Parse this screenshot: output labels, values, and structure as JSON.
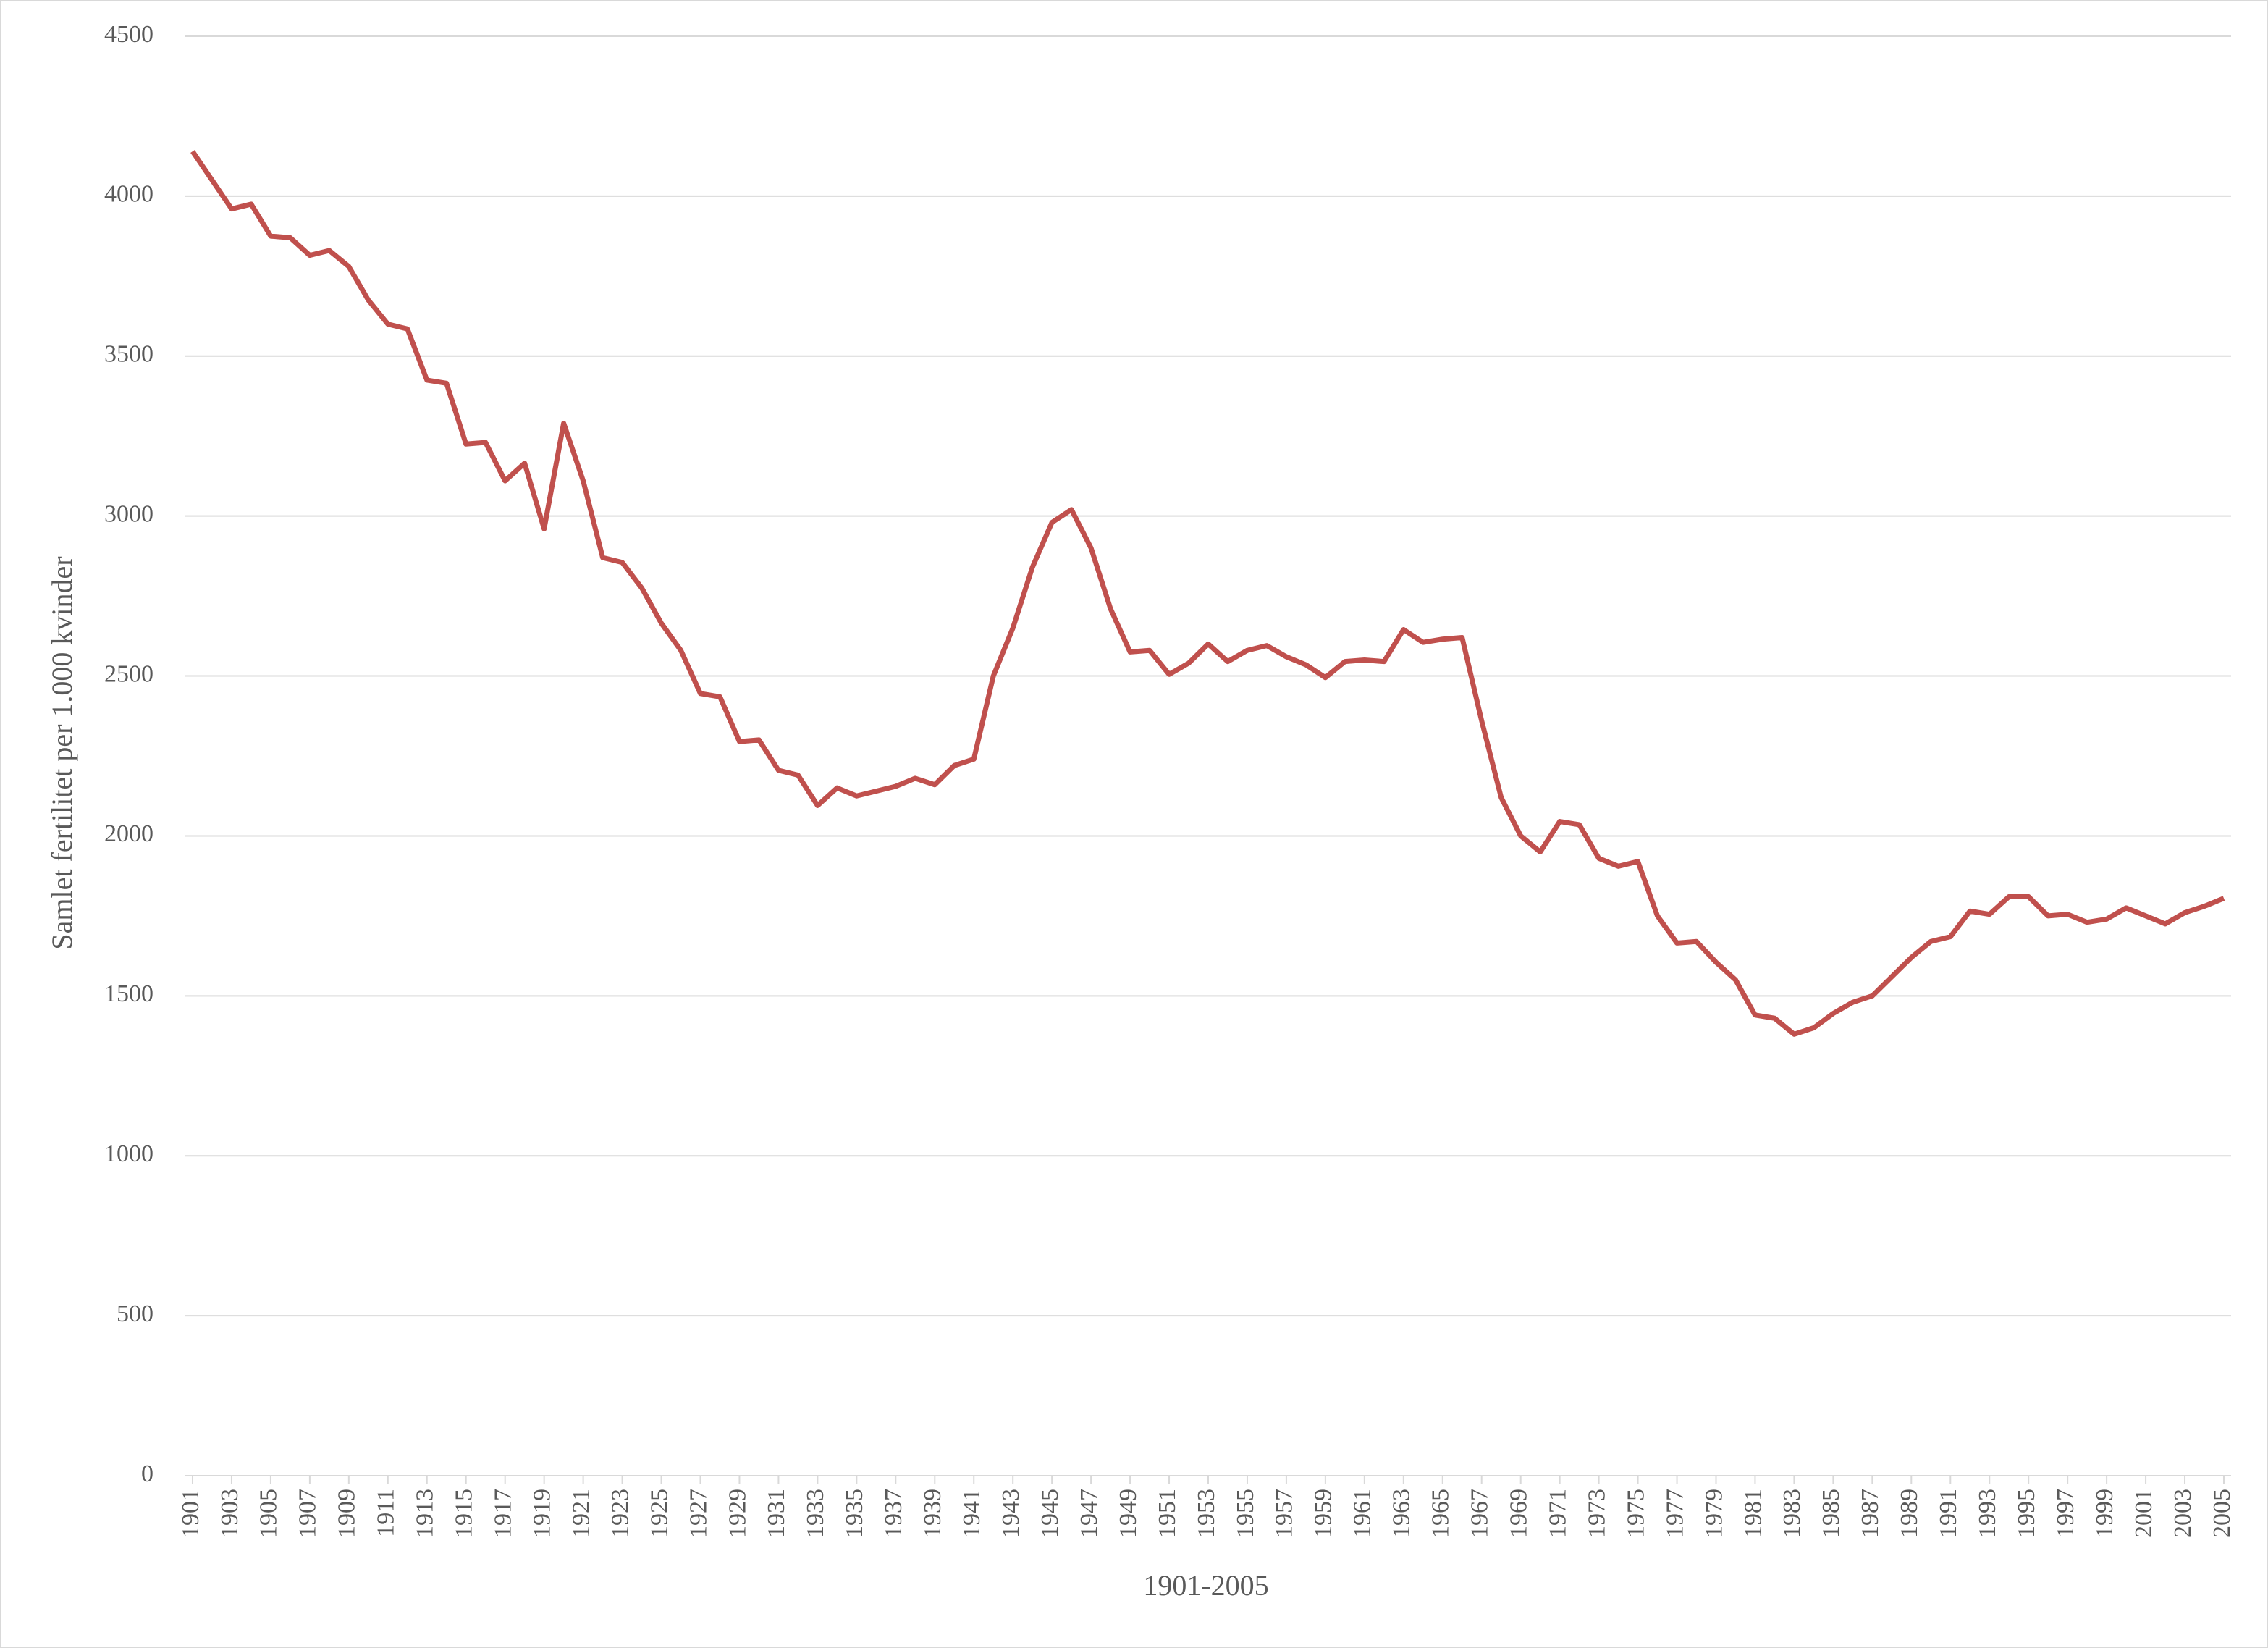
{
  "chart_data": {
    "type": "line",
    "x_label": "1901-2005",
    "y_label": "Samlet fertilitet per 1.000 kvinder",
    "x": [
      1901,
      1902,
      1903,
      1904,
      1905,
      1906,
      1907,
      1908,
      1909,
      1910,
      1911,
      1912,
      1913,
      1914,
      1915,
      1916,
      1917,
      1918,
      1919,
      1920,
      1921,
      1922,
      1923,
      1924,
      1925,
      1926,
      1927,
      1928,
      1929,
      1930,
      1931,
      1932,
      1933,
      1934,
      1935,
      1936,
      1937,
      1938,
      1939,
      1940,
      1941,
      1942,
      1943,
      1944,
      1945,
      1946,
      1947,
      1948,
      1949,
      1950,
      1951,
      1952,
      1953,
      1954,
      1955,
      1956,
      1957,
      1958,
      1959,
      1960,
      1961,
      1962,
      1963,
      1964,
      1965,
      1966,
      1967,
      1968,
      1969,
      1970,
      1971,
      1972,
      1973,
      1974,
      1975,
      1976,
      1977,
      1978,
      1979,
      1980,
      1981,
      1982,
      1983,
      1984,
      1985,
      1986,
      1987,
      1988,
      1989,
      1990,
      1991,
      1992,
      1993,
      1994,
      1995,
      1996,
      1997,
      1998,
      1999,
      2000,
      2001,
      2002,
      2003,
      2004,
      2005
    ],
    "series": [
      {
        "color": "#c0504d",
        "values": [
          4140,
          4050,
          3960,
          3975,
          3875,
          3870,
          3815,
          3830,
          3780,
          3675,
          3600,
          3585,
          3425,
          3415,
          3225,
          3230,
          3110,
          3165,
          2960,
          3290,
          3110,
          2870,
          2855,
          2775,
          2665,
          2580,
          2445,
          2435,
          2295,
          2300,
          2205,
          2190,
          2095,
          2150,
          2125,
          2140,
          2155,
          2180,
          2160,
          2220,
          2240,
          2500,
          2650,
          2840,
          2980,
          3020,
          2900,
          2710,
          2575,
          2580,
          2505,
          2540,
          2600,
          2545,
          2580,
          2595,
          2560,
          2535,
          2495,
          2545,
          2550,
          2545,
          2645,
          2605,
          2615,
          2620,
          2360,
          2120,
          2000,
          1950,
          2045,
          2035,
          1930,
          1905,
          1920,
          1750,
          1665,
          1670,
          1605,
          1550,
          1440,
          1430,
          1380,
          1400,
          1445,
          1480,
          1500,
          1560,
          1620,
          1670,
          1685,
          1765,
          1755,
          1810,
          1810,
          1750,
          1755,
          1730,
          1740,
          1775,
          1750,
          1725,
          1760,
          1780,
          1805
        ]
      }
    ],
    "xlim": [
      1901,
      2005
    ],
    "xticks": [
      1901,
      1903,
      1905,
      1907,
      1909,
      1911,
      1913,
      1915,
      1917,
      1919,
      1921,
      1923,
      1925,
      1927,
      1929,
      1931,
      1933,
      1935,
      1937,
      1939,
      1941,
      1943,
      1945,
      1947,
      1949,
      1951,
      1953,
      1955,
      1957,
      1959,
      1961,
      1963,
      1965,
      1967,
      1969,
      1971,
      1973,
      1975,
      1977,
      1979,
      1981,
      1983,
      1985,
      1987,
      1989,
      1991,
      1993,
      1995,
      1997,
      1999,
      2001,
      2003,
      2005
    ],
    "ylim": [
      0,
      4500
    ],
    "yticks": [
      0,
      500,
      1000,
      1500,
      2000,
      2500,
      3000,
      3500,
      4000,
      4500
    ],
    "grid": true
  }
}
